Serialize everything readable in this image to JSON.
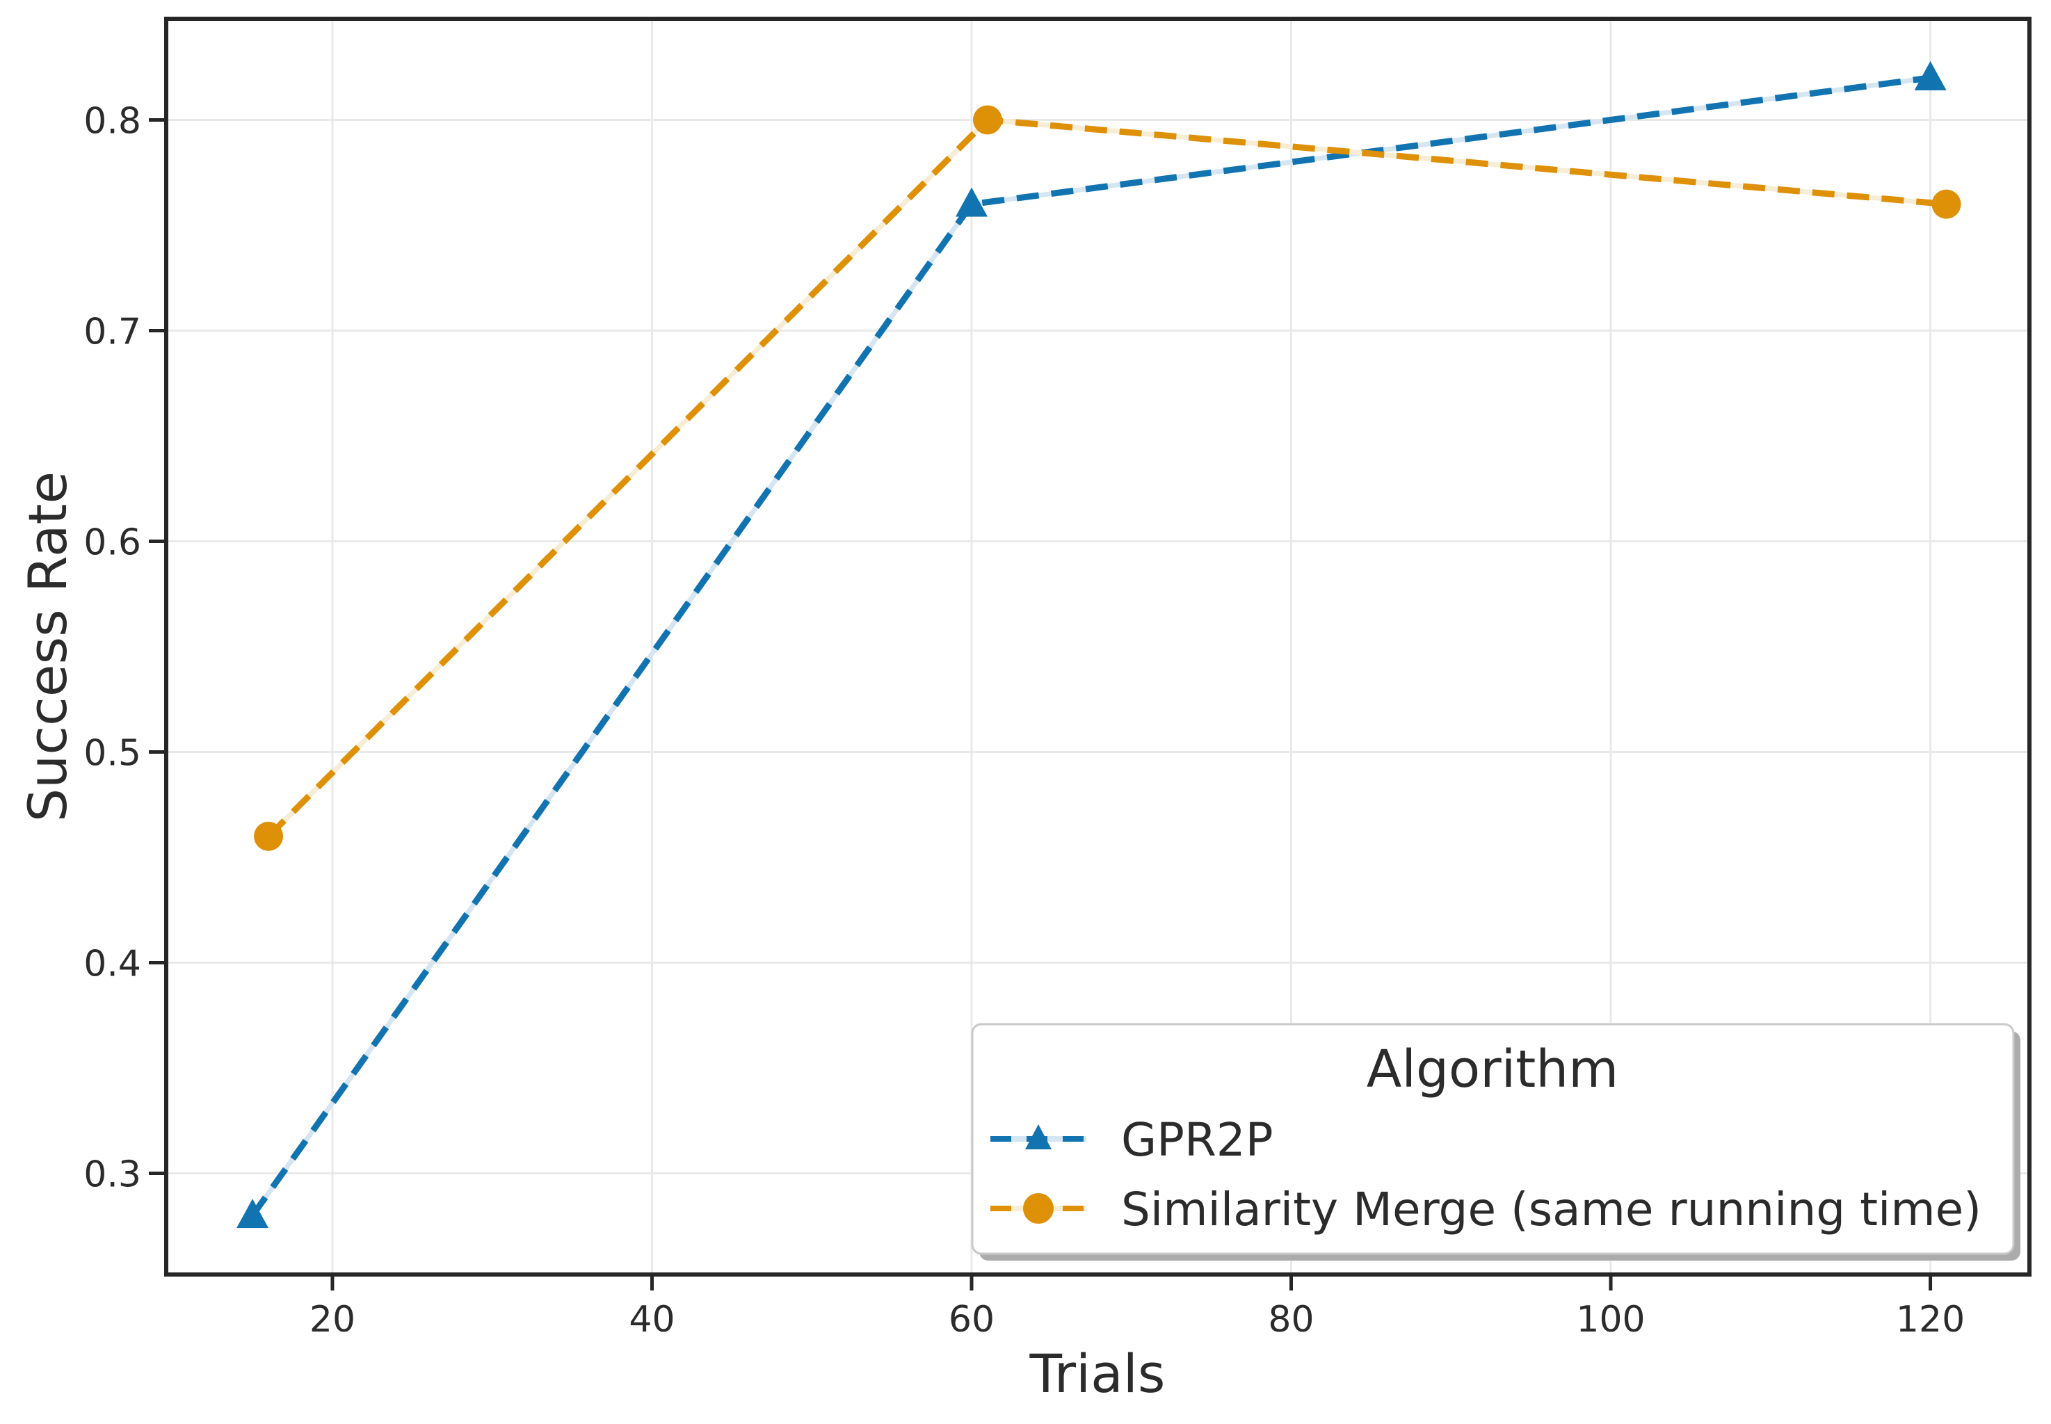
{
  "style": {
    "spine_color": "#262626",
    "grid_color": "#e9e9e9",
    "text_color": "#2b2b2b",
    "background": "#ffffff",
    "legend_border": "#c9c9c9",
    "legend_shadow": "#ababab",
    "legend_bg": "#ffffff"
  },
  "chart_data": {
    "type": "line",
    "title": "",
    "xlabel": "Trials",
    "ylabel": "Success Rate",
    "xlim": [
      9.6,
      126.2
    ],
    "ylim": [
      0.252,
      0.848
    ],
    "xticks": [
      20,
      40,
      60,
      80,
      100,
      120
    ],
    "yticks": [
      0.3,
      0.4,
      0.5,
      0.6,
      0.7,
      0.8
    ],
    "grid": true,
    "legend_title": "Algorithm",
    "legend_position": "lower right",
    "series": [
      {
        "name": "GPR2P",
        "x": [
          15,
          60,
          120
        ],
        "y": [
          0.28,
          0.76,
          0.82
        ],
        "color": "#1173b0",
        "gap_color": "#d5e5f1",
        "marker": "triangle",
        "linestyle": "dashed"
      },
      {
        "name": "Similarity Merge (same running time)",
        "x": [
          16,
          61,
          121
        ],
        "y": [
          0.46,
          0.8,
          0.76
        ],
        "color": "#de9007",
        "gap_color": "#f7ecd4",
        "marker": "circle",
        "linestyle": "dashed"
      }
    ]
  }
}
